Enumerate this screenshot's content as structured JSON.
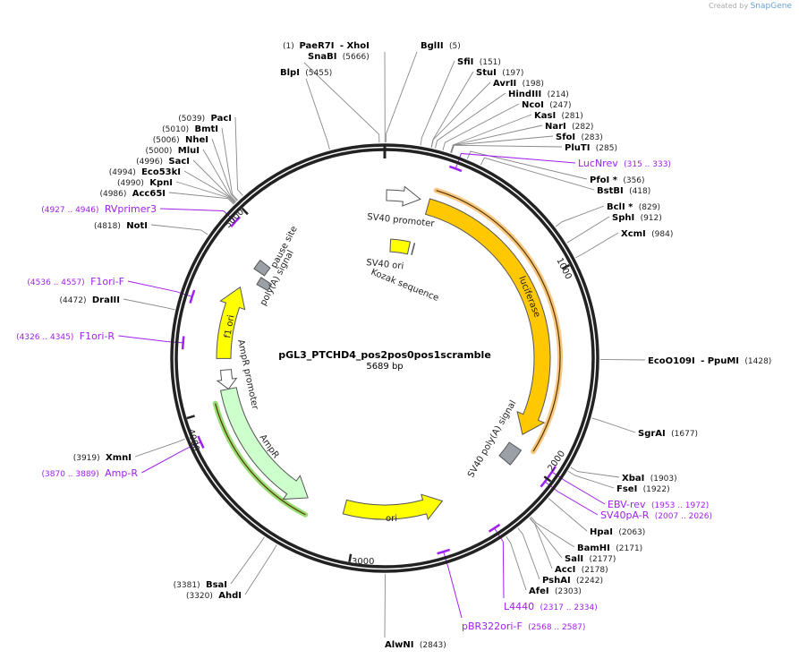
{
  "credit": {
    "prefix": "Created by",
    "brand": "SnapGene"
  },
  "plasmid": {
    "name": "pGL3_PTCHD4_pos2pos0pos1scramble",
    "size_label": "5689 bp",
    "length_bp": 5689
  },
  "colors": {
    "backbone": "#222222",
    "primer": "#a020f0",
    "site_line": "#888888",
    "luciferase": "#ffc800",
    "orf_halo": "#f8c880",
    "ori": "#ffff00",
    "ampr": "#ccffcc",
    "ampr_halo": "#99dd77",
    "box": "#9aa0a6"
  },
  "ticks": [
    {
      "label": "1000",
      "bp": 1000
    },
    {
      "label": "2000",
      "bp": 2000
    },
    {
      "label": "3000",
      "bp": 3000
    },
    {
      "label": "4000",
      "bp": 4000
    },
    {
      "label": "5000",
      "bp": 5000
    }
  ],
  "sites": [
    {
      "name": "PaeR7I",
      "suffix": "- XhoI",
      "pos": "(1)",
      "bp": 1
    },
    {
      "name": "SnaBI",
      "pos": "(5666)",
      "bp": 5666
    },
    {
      "name": "BlpI",
      "pos": "(5455)",
      "bp": 5455
    },
    {
      "name": "BglII",
      "pos": "(5)",
      "bp": 5
    },
    {
      "name": "SfiI",
      "pos": "(151)",
      "bp": 151
    },
    {
      "name": "StuI",
      "pos": "(197)",
      "bp": 197
    },
    {
      "name": "AvrII",
      "pos": "(198)",
      "bp": 198
    },
    {
      "name": "HindIII",
      "pos": "(214)",
      "bp": 214
    },
    {
      "name": "NcoI",
      "pos": "(247)",
      "bp": 247
    },
    {
      "name": "KasI",
      "pos": "(281)",
      "bp": 281
    },
    {
      "name": "NarI",
      "pos": "(282)",
      "bp": 282
    },
    {
      "name": "SfoI",
      "pos": "(283)",
      "bp": 283
    },
    {
      "name": "PluTI",
      "pos": "(285)",
      "bp": 285
    },
    {
      "name": "PfoI *",
      "pos": "(356)",
      "bp": 356
    },
    {
      "name": "BstBI",
      "pos": "(418)",
      "bp": 418
    },
    {
      "name": "BclI *",
      "pos": "(829)",
      "bp": 829
    },
    {
      "name": "SphI",
      "pos": "(912)",
      "bp": 912
    },
    {
      "name": "XcmI",
      "pos": "(984)",
      "bp": 984
    },
    {
      "name": "EcoO109I",
      "suffix": "- PpuMI",
      "pos": "(1428)",
      "bp": 1428
    },
    {
      "name": "SgrAI",
      "pos": "(1677)",
      "bp": 1677
    },
    {
      "name": "XbaI",
      "pos": "(1903)",
      "bp": 1903
    },
    {
      "name": "FseI",
      "pos": "(1922)",
      "bp": 1922
    },
    {
      "name": "HpaI",
      "pos": "(2063)",
      "bp": 2063
    },
    {
      "name": "BamHI",
      "pos": "(2171)",
      "bp": 2171
    },
    {
      "name": "SalI",
      "pos": "(2177)",
      "bp": 2177
    },
    {
      "name": "AccI",
      "pos": "(2178)",
      "bp": 2178
    },
    {
      "name": "PshAI",
      "pos": "(2242)",
      "bp": 2242
    },
    {
      "name": "AfeI",
      "pos": "(2303)",
      "bp": 2303
    },
    {
      "name": "AlwNI",
      "pos": "(2843)",
      "bp": 2843
    },
    {
      "name": "AhdI",
      "pos": "(3320)",
      "bp": 3320
    },
    {
      "name": "BsaI",
      "pos": "(3381)",
      "bp": 3381
    },
    {
      "name": "XmnI",
      "pos": "(3919)",
      "bp": 3919
    },
    {
      "name": "DraIII",
      "pos": "(4472)",
      "bp": 4472
    },
    {
      "name": "NotI",
      "pos": "(4818)",
      "bp": 4818
    },
    {
      "name": "Acc65I",
      "pos": "(4986)",
      "bp": 4986
    },
    {
      "name": "KpnI",
      "pos": "(4990)",
      "bp": 4990
    },
    {
      "name": "Eco53kI",
      "pos": "(4994)",
      "bp": 4994
    },
    {
      "name": "SacI",
      "pos": "(4996)",
      "bp": 4996
    },
    {
      "name": "MluI",
      "pos": "(5000)",
      "bp": 5000
    },
    {
      "name": "NheI",
      "pos": "(5006)",
      "bp": 5006
    },
    {
      "name": "BmtI",
      "pos": "(5010)",
      "bp": 5010
    },
    {
      "name": "PacI",
      "pos": "(5039)",
      "bp": 5039
    }
  ],
  "primers": [
    {
      "name": "LucNrev",
      "pos": "(315 .. 333)",
      "start": 315,
      "end": 333
    },
    {
      "name": "EBV-rev",
      "pos": "(1953 .. 1972)",
      "start": 1953,
      "end": 1972
    },
    {
      "name": "SV40pA-R",
      "pos": "(2007 .. 2026)",
      "start": 2007,
      "end": 2026
    },
    {
      "name": "L4440",
      "pos": "(2317 .. 2334)",
      "start": 2317,
      "end": 2334
    },
    {
      "name": "pBR322ori-F",
      "pos": "(2568 .. 2587)",
      "start": 2568,
      "end": 2587
    },
    {
      "name": "Amp-R",
      "pos": "(3870 .. 3889)",
      "start": 3870,
      "end": 3889
    },
    {
      "name": "F1ori-R",
      "pos": "(4326 .. 4345)",
      "start": 4326,
      "end": 4345
    },
    {
      "name": "F1ori-F",
      "pos": "(4536 .. 4557)",
      "start": 4536,
      "end": 4557
    },
    {
      "name": "RVprimer3",
      "pos": "(4927 .. 4946)",
      "start": 4927,
      "end": 4946
    }
  ],
  "features": [
    {
      "label": "luciferase",
      "start": 250,
      "end": 1880,
      "dir": 1,
      "kind": "arrow",
      "color": "#ffc800"
    },
    {
      "label": "SV40 promoter",
      "start": 10,
      "end": 200,
      "dir": 1,
      "kind": "arrow",
      "color": "#ffffff"
    },
    {
      "label": "SV40 ori",
      "start": 45,
      "end": 195,
      "dir": 0,
      "kind": "box",
      "color": "#ffff00"
    },
    {
      "label": "Kozak sequence",
      "start": 230,
      "end": 240,
      "dir": 0,
      "kind": "line",
      "color": "#555555"
    },
    {
      "label": "SV40 poly(A) signal",
      "start": 1960,
      "end": 2060,
      "dir": 0,
      "kind": "box",
      "color": "#9aa0a6"
    },
    {
      "label": "ori",
      "start": 2497,
      "end": 3082,
      "dir": -1,
      "kind": "arrow",
      "color": "#ffff00"
    },
    {
      "label": "AmpR",
      "start": 3300,
      "end": 4090,
      "dir": -1,
      "kind": "arrow",
      "color": "#ccffcc"
    },
    {
      "label": "AmpR promoter",
      "start": 4090,
      "end": 4200,
      "dir": -1,
      "kind": "arrow",
      "color": "#ffffff"
    },
    {
      "label": "f1 ori",
      "start": 4265,
      "end": 4680,
      "dir": 1,
      "kind": "arrow",
      "color": "#ffff00"
    },
    {
      "label": "poly(A) signal",
      "start": 4740,
      "end": 4790,
      "dir": 0,
      "kind": "box",
      "color": "#9aa0a6"
    },
    {
      "label": "pause site",
      "start": 4810,
      "end": 4870,
      "dir": 0,
      "kind": "box",
      "color": "#9aa0a6"
    }
  ]
}
